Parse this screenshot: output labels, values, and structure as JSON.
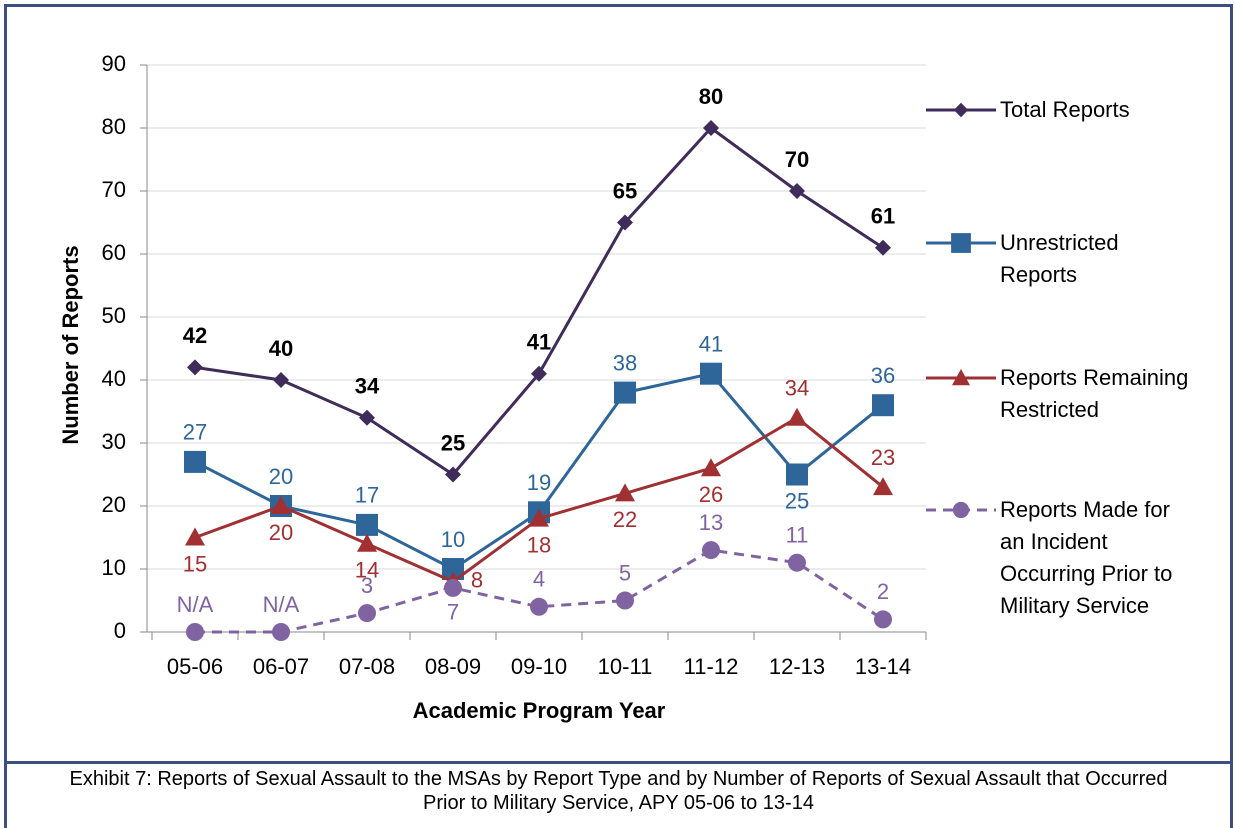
{
  "chart_data": {
    "type": "line",
    "y_label": "Number of Reports",
    "x_label": "Academic Program Year",
    "caption": "Exhibit 7: Reports of Sexual Assault to the MSAs by Report Type and by Number of Reports of Sexual Assault that Occurred Prior to Military Service, APY 05-06 to 13-14",
    "categories": [
      "05-06",
      "06-07",
      "07-08",
      "08-09",
      "09-10",
      "10-11",
      "11-12",
      "12-13",
      "13-14"
    ],
    "ylim": [
      0,
      90
    ],
    "yticks": [
      0,
      10,
      20,
      30,
      40,
      50,
      60,
      70,
      80,
      90
    ],
    "grid": true,
    "legend": "right",
    "series": [
      {
        "name": "Total Reports",
        "color": "#3f2c5a",
        "marker": "diamond",
        "values": [
          42,
          40,
          34,
          25,
          41,
          65,
          80,
          70,
          61
        ]
      },
      {
        "name": "Unrestricted Reports",
        "color": "#2f6699",
        "marker": "square",
        "values": [
          27,
          20,
          17,
          10,
          19,
          38,
          41,
          25,
          36
        ]
      },
      {
        "name": "Reports Remaining Restricted",
        "color": "#a03032",
        "marker": "triangle",
        "values": [
          15,
          20,
          14,
          8,
          18,
          22,
          26,
          34,
          23
        ]
      },
      {
        "name": "Reports Made for an Incident Occurring Prior to Military Service",
        "color": "#8064a2",
        "marker": "circle",
        "dashed": true,
        "values": [
          0,
          0,
          3,
          7,
          4,
          5,
          13,
          11,
          2
        ],
        "value_labels": [
          "N/A",
          "N/A",
          "3",
          "7",
          "4",
          "5",
          "13",
          "11",
          "2"
        ]
      }
    ]
  }
}
